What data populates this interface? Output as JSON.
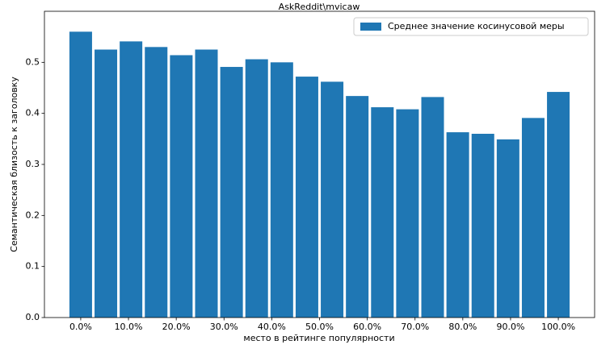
{
  "chart_data": {
    "type": "bar",
    "title": "AskReddit\\mvicaw",
    "xlabel": "место в рейтинге популярности",
    "ylabel": "Семантическая близость к заголовку",
    "x": [
      0,
      5.263,
      10.526,
      15.789,
      21.053,
      26.316,
      31.579,
      36.842,
      42.105,
      47.368,
      52.632,
      57.895,
      63.158,
      68.421,
      73.684,
      78.947,
      84.211,
      89.474,
      94.737,
      100
    ],
    "series": [
      {
        "name": "Среднее значение косинусовой меры",
        "color": "#1f77b4",
        "values": [
          0.56,
          0.525,
          0.541,
          0.53,
          0.514,
          0.525,
          0.491,
          0.506,
          0.5,
          0.472,
          0.462,
          0.434,
          0.412,
          0.408,
          0.432,
          0.363,
          0.36,
          0.349,
          0.391,
          0.442
        ]
      }
    ],
    "xlim": [
      -7.6,
      107.6
    ],
    "xticks": [
      {
        "value": 0,
        "label": "0.0%"
      },
      {
        "value": 10,
        "label": "10.0%"
      },
      {
        "value": 20,
        "label": "20.0%"
      },
      {
        "value": 30,
        "label": "30.0%"
      },
      {
        "value": 40,
        "label": "40.0%"
      },
      {
        "value": 50,
        "label": "50.0%"
      },
      {
        "value": 60,
        "label": "60.0%"
      },
      {
        "value": 70,
        "label": "70.0%"
      },
      {
        "value": 80,
        "label": "80.0%"
      },
      {
        "value": 90,
        "label": "90.0%"
      },
      {
        "value": 100,
        "label": "100.0%"
      }
    ],
    "ylim": [
      0,
      0.6
    ],
    "yticks": [
      {
        "value": 0,
        "label": "0.0"
      },
      0.1,
      0.2,
      0.3,
      0.4,
      0.5
    ],
    "legend": "upper right",
    "grid": false
  }
}
